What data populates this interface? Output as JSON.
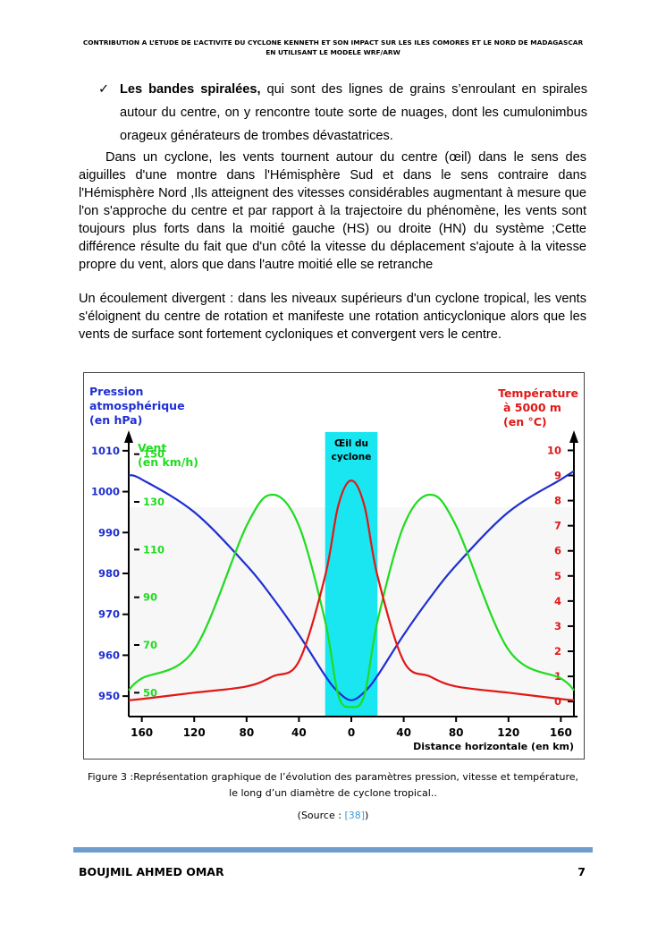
{
  "header": {
    "line1": "CONTRIBUTION A L’ETUDE DE L’ACTIVITE DU CYCLONE KENNETH ET SON IMPACT SUR LES ILES COMORES ET LE NORD DE MADAGASCAR",
    "line2": "EN UTILISANT LE MODELE WRF/ARW"
  },
  "bullet": {
    "check": "✓",
    "title": "Les bandes spiralées,",
    "text": " qui sont des lignes de grains s’enroulant en spirales autour du centre, on y rencontre toute sorte de nuages, dont les cumulonimbus orageux générateurs de trombes dévastatrices."
  },
  "paragraphs": {
    "p1": "Dans un cyclone, les vents tournent autour du centre (œil) dans le sens des aiguilles d'une montre dans l'Hémisphère Sud et dans le sens contraire dans l'Hémisphère Nord ,Ils atteignent des vitesses considérables augmentant à mesure que l'on s'approche du centre et par rapport à la trajectoire du phénomène, les vents sont toujours plus forts dans la moitié gauche (HS) ou droite (HN) du système ;Cette différence résulte du fait que d'un côté la vitesse du déplacement s'ajoute à la vitesse propre du vent, alors que dans l'autre moitié elle se retranche",
    "p2": "Un écoulement divergent : dans les niveaux supérieurs d'un cyclone tropical, les vents s'éloignent du centre de rotation et manifeste une rotation anticyclonique  alors que les vents de surface sont fortement cycloniques et convergent vers le centre."
  },
  "figure": {
    "pressure_label": [
      "Pression",
      "atmosphérique",
      "(en hPa)"
    ],
    "wind_label": [
      "Vent",
      "(en km/h)"
    ],
    "temp_label": [
      "Température",
      "à 5000 m",
      "(en °C)"
    ],
    "eye_label": [
      "Œil du",
      "cyclone"
    ],
    "x_axis_title": "Distance horizontale (en km)",
    "pressure_ticks": [
      "1010",
      "1000",
      "990",
      "980",
      "970",
      "960",
      "950"
    ],
    "wind_ticks": [
      "150",
      "130",
      "110",
      "90",
      "70",
      "50"
    ],
    "temp_ticks": [
      "10",
      "9",
      "8",
      "7",
      "6",
      "5",
      "4",
      "3",
      "2",
      "1",
      "0"
    ],
    "x_ticks": [
      "160",
      "120",
      "80",
      "40",
      "0",
      "40",
      "80",
      "120",
      "160"
    ],
    "colors": {
      "pressure": "#1f2fd0",
      "wind": "#1fdc1f",
      "temp": "#e01818",
      "eye": "#19e6f0"
    }
  },
  "chart_data": {
    "type": "line",
    "title": "",
    "xlabel": "Distance horizontale (en km)",
    "x": [
      -170,
      -160,
      -120,
      -80,
      -60,
      -40,
      -20,
      -10,
      0,
      10,
      20,
      40,
      60,
      80,
      120,
      160,
      170
    ],
    "series": [
      {
        "name": "Pression atmosphérique (en hPa)",
        "axis": "left",
        "color": "#1f2fd0",
        "values": [
          1004,
          1003,
          995,
          982,
          974,
          965,
          955,
          951,
          949,
          951,
          955,
          965,
          974,
          982,
          995,
          1003,
          1005
        ]
      },
      {
        "name": "Vent (en km/h)",
        "axis": "wind",
        "color": "#1fdc1f",
        "values": [
          51,
          56,
          68,
          120,
          133,
          120,
          80,
          49,
          44,
          49,
          80,
          120,
          133,
          120,
          68,
          56,
          51
        ]
      },
      {
        "name": "Température à 5000 m (en °C)",
        "axis": "right",
        "color": "#e01818",
        "values": [
          0.05,
          0.1,
          0.35,
          0.6,
          1.0,
          1.6,
          5.0,
          7.8,
          8.8,
          7.8,
          5.0,
          1.6,
          1.0,
          0.6,
          0.35,
          0.1,
          0.05
        ]
      }
    ],
    "ylim_pressure": [
      945,
      1015
    ],
    "ylim_wind": [
      40,
      160
    ],
    "ylim_temp": [
      -0.6,
      10.8
    ],
    "eye_region": [
      -20,
      20
    ]
  },
  "caption": {
    "line1": "Figure 3 :Représentation graphique de l’évolution des paramètres pression, vitesse et température,",
    "line2": "le long d’un diamètre de cyclone tropical.."
  },
  "source": {
    "prefix": "(Source : ",
    "ref": "[38]",
    "suffix": ")"
  },
  "footer": {
    "author": "BOUJMIL AHMED OMAR",
    "page": "7"
  }
}
